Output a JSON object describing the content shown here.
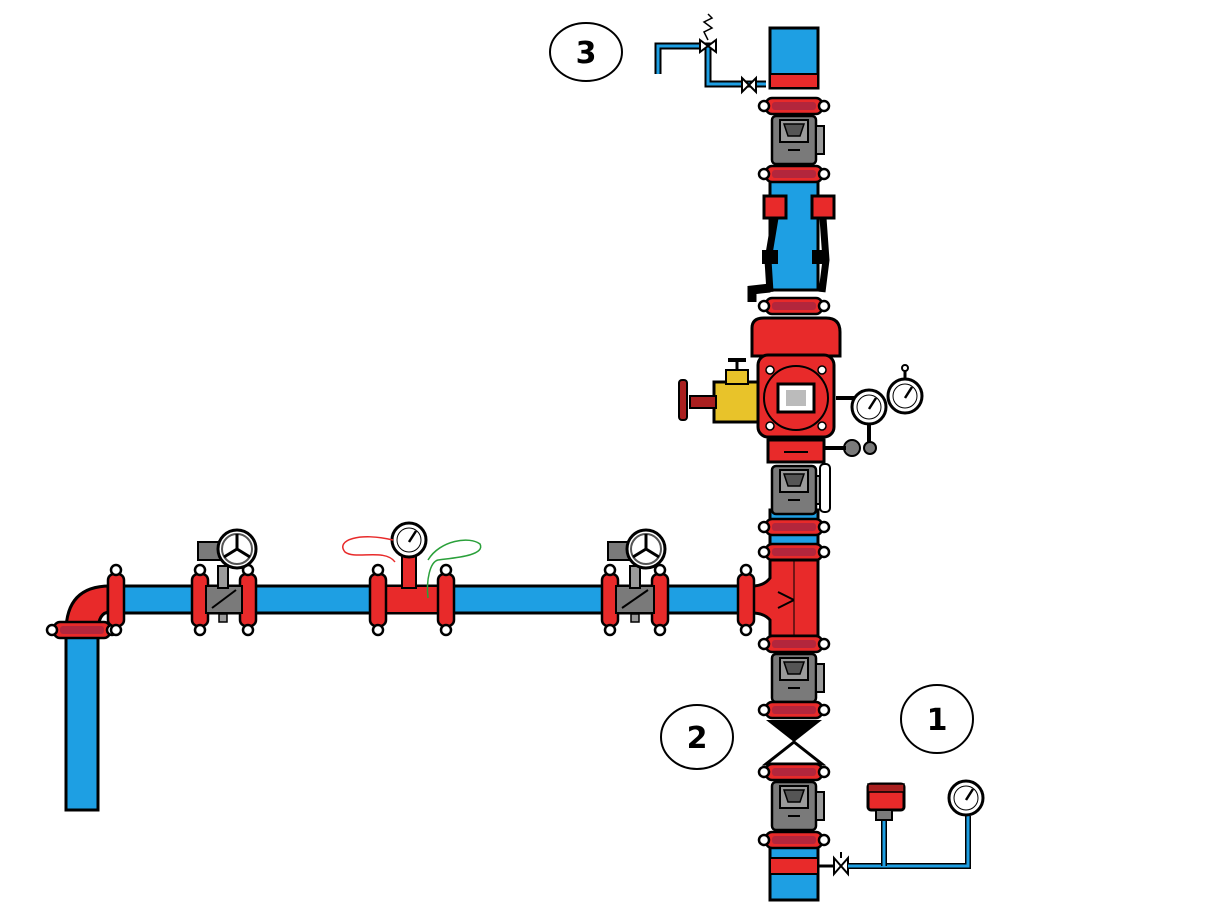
{
  "labels": {
    "one": "1",
    "two": "2",
    "three": "3"
  },
  "colors": {
    "water": "#1e9fe3",
    "pipe_red": "#e82a2a",
    "coupling_dark": "#b3263c",
    "valve_gray": "#7a7a7a",
    "brass": "#e8c32a",
    "outline": "#000000"
  },
  "icons": {
    "gate_valve": "gate-valve-icon",
    "pressure_gauge": "pressure-gauge-icon",
    "check_valve": "check-valve-icon",
    "alarm_valve": "alarm-valve-icon",
    "pressure_switch": "pressure-switch-icon",
    "relief_valve": "relief-valve-icon",
    "handwheel": "handwheel-icon"
  }
}
